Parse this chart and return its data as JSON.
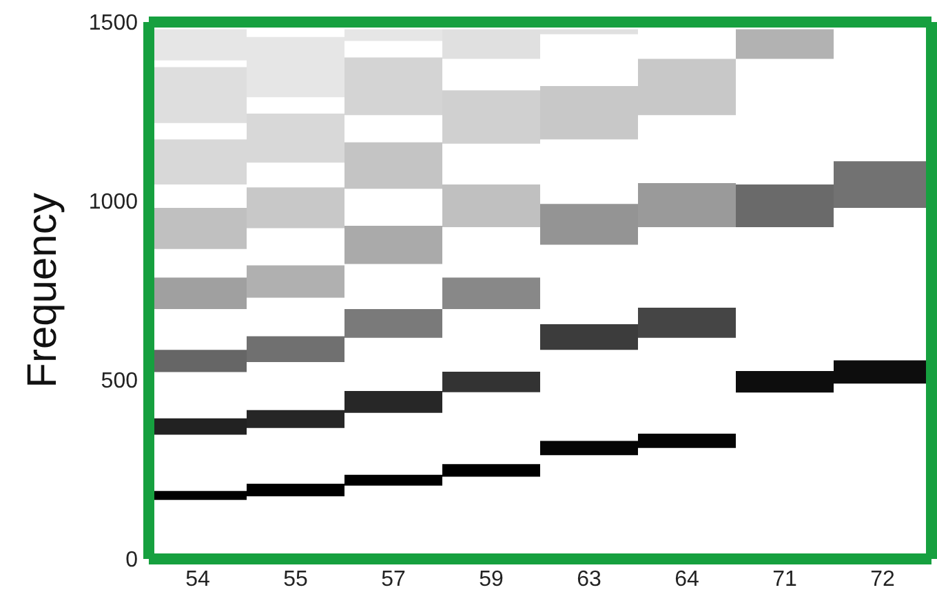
{
  "chart_data": {
    "type": "bar",
    "ylabel": "Frequency",
    "categories": [
      "54",
      "55",
      "57",
      "59",
      "63",
      "64",
      "71",
      "72"
    ],
    "ylim": [
      0,
      1500
    ],
    "yticks": [
      0,
      500,
      1000,
      1500
    ],
    "grid": false,
    "legend": false,
    "series": [
      {
        "base": [
          165,
          175,
          205,
          230,
          290,
          310,
          465,
          490
        ],
        "values": [
          25,
          35,
          30,
          35,
          40,
          40,
          60,
          65
        ],
        "colors": [
          "#000000",
          "#000000",
          "#000000",
          "#000000",
          "#050505",
          "#050505",
          "#0d0d0d",
          "#0d0d0d"
        ]
      },
      {
        "base": [
          347,
          366,
          408,
          466,
          584,
          618,
          927,
          981
        ],
        "values": [
          46,
          50,
          61,
          57,
          72,
          84,
          119,
          130
        ],
        "colors": [
          "#222222",
          "#262626",
          "#272727",
          "#333333",
          "#3c3c3c",
          "#454545",
          "#6a6a6a",
          "#727272"
        ]
      },
      {
        "base": [
          522,
          550,
          618,
          698,
          878,
          927,
          1397,
          null
        ],
        "values": [
          62,
          72,
          80,
          88,
          114,
          123,
          83,
          null
        ],
        "colors": [
          "#666666",
          "#707070",
          "#7a7a7a",
          "#888888",
          "#949494",
          "#9a9a9a",
          "#b2b2b2",
          null
        ]
      },
      {
        "base": [
          698,
          730,
          824,
          927,
          1172,
          1240,
          null,
          null
        ],
        "values": [
          88,
          90,
          107,
          119,
          149,
          157,
          null,
          null
        ],
        "colors": [
          "#a0a0a0",
          "#b0b0b0",
          "#aaaaaa",
          "#c0c0c0",
          "#c8c8c8",
          "#c8c8c8",
          null,
          null
        ]
      },
      {
        "base": [
          866,
          924,
          1034,
          1160,
          1466,
          null,
          null,
          null
        ],
        "values": [
          115,
          114,
          130,
          149,
          14,
          null,
          null,
          null
        ],
        "colors": [
          "#c0c0c0",
          "#c8c8c8",
          "#c4c4c4",
          "#d0d0d0",
          "#e0e0e0",
          null,
          null,
          null
        ]
      },
      {
        "base": [
          1046,
          1107,
          1240,
          1397,
          null,
          null,
          null,
          null
        ],
        "values": [
          126,
          137,
          161,
          83,
          null,
          null,
          null,
          null
        ],
        "colors": [
          "#d8d8d8",
          "#d8d8d8",
          "#d4d4d4",
          "#e0e0e0",
          null,
          null,
          null,
          null
        ]
      },
      {
        "base": [
          1218,
          1290,
          1447,
          null,
          null,
          null,
          null,
          null
        ],
        "values": [
          156,
          168,
          33,
          null,
          null,
          null,
          null,
          null
        ],
        "colors": [
          "#dedede",
          "#e6e6e6",
          "#e6e6e6",
          null,
          null,
          null,
          null,
          null
        ]
      },
      {
        "base": [
          1393,
          null,
          null,
          null,
          null,
          null,
          null,
          null
        ],
        "values": [
          87,
          null,
          null,
          null,
          null,
          null,
          null,
          null
        ],
        "colors": [
          "#e6e6e6",
          null,
          null,
          null,
          null,
          null,
          null,
          null
        ]
      }
    ]
  }
}
